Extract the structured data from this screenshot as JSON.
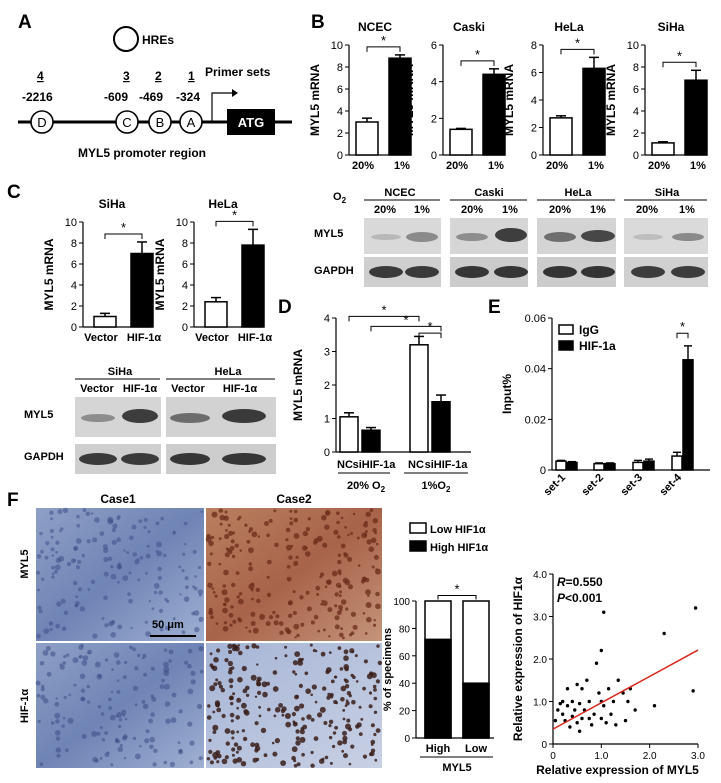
{
  "panel_labels": {
    "A": "A",
    "B": "B",
    "C": "C",
    "D": "D",
    "E": "E",
    "F": "F"
  },
  "panelA": {
    "hre_label": "HREs",
    "primer_label": "Primer sets",
    "set_numbers": [
      "4",
      "3",
      "2",
      "1"
    ],
    "positions": [
      "-2216",
      "-609",
      "-469",
      "-324"
    ],
    "sites": [
      "D",
      "C",
      "B",
      "A"
    ],
    "atg": "ATG",
    "caption": "MYL5 promoter region"
  },
  "panelB": {
    "charts": [
      {
        "title": "NCEC",
        "ylabel": "MYL5 mRNA",
        "yticks": [
          "0",
          "2",
          "4",
          "6",
          "8",
          "10"
        ],
        "ymax": 10,
        "categories": [
          "20%",
          "1%"
        ],
        "values": [
          3.0,
          8.8
        ],
        "errors": [
          0.35,
          0.3
        ],
        "sig": "*"
      },
      {
        "title": "Caski",
        "ylabel": "MYL5 mRNA",
        "yticks": [
          "0",
          "2",
          "4",
          "6"
        ],
        "ymax": 6,
        "categories": [
          "20%",
          "1%"
        ],
        "values": [
          1.4,
          4.4
        ],
        "errors": [
          0.05,
          0.3
        ],
        "sig": "*"
      },
      {
        "title": "HeLa",
        "ylabel": "MYL5 mRNA",
        "yticks": [
          "0",
          "2",
          "4",
          "6",
          "8"
        ],
        "ymax": 8,
        "categories": [
          "20%",
          "1%"
        ],
        "values": [
          2.7,
          6.3
        ],
        "errors": [
          0.15,
          0.8
        ],
        "sig": "*"
      },
      {
        "title": "SiHa",
        "ylabel": "MYL5 mRNA",
        "yticks": [
          "0",
          "2",
          "4",
          "6",
          "8",
          "10"
        ],
        "ymax": 10,
        "categories": [
          "20%",
          "1%"
        ],
        "values": [
          1.1,
          6.8
        ],
        "errors": [
          0.1,
          0.9
        ],
        "sig": "*"
      }
    ],
    "blot": {
      "o2_label": "O",
      "o2_sub": "2",
      "cells": [
        "NCEC",
        "Caski",
        "HeLa",
        "SiHa"
      ],
      "lanes": [
        "20%",
        "1%"
      ],
      "rows": [
        "MYL5",
        "GAPDH"
      ]
    }
  },
  "panelC": {
    "charts": [
      {
        "title": "SiHa",
        "ylabel": "MYL5  mRNA",
        "yticks": [
          "0",
          "2",
          "4",
          "6",
          "8",
          "10"
        ],
        "ymax": 10,
        "categories": [
          "Vector",
          "HIF-1α"
        ],
        "values": [
          1.0,
          7.0
        ],
        "errors": [
          0.3,
          1.1
        ],
        "sig": "*"
      },
      {
        "title": "HeLa",
        "ylabel": "MYL5  mRNA",
        "yticks": [
          "0",
          "2",
          "4",
          "6",
          "8",
          "10"
        ],
        "ymax": 10,
        "categories": [
          "Vector",
          "HIF-1α"
        ],
        "values": [
          2.4,
          7.8
        ],
        "errors": [
          0.4,
          1.5
        ],
        "sig": "*"
      }
    ],
    "blot": {
      "cells": [
        "SiHa",
        "HeLa"
      ],
      "lanes": [
        "Vector",
        "HIF-1α"
      ],
      "rows": [
        "MYL5",
        "GAPDH"
      ]
    }
  },
  "panelD": {
    "chart_data": {
      "type": "bar",
      "ylabel": "MYL5 mRNA",
      "yticks": [
        "0",
        "1",
        "2",
        "3",
        "4"
      ],
      "ylim": [
        0,
        4
      ],
      "categories": [
        "NC",
        "siHIF-1a",
        "NC",
        "siHIF-1a"
      ],
      "values": [
        1.05,
        0.65,
        3.2,
        1.5
      ],
      "errors": [
        0.12,
        0.08,
        0.25,
        0.2
      ],
      "fills": [
        "white",
        "black",
        "white",
        "black"
      ],
      "group_labels": [
        "20%  O",
        "1%O"
      ],
      "group_subs": [
        "2",
        "2"
      ],
      "sig": "*"
    }
  },
  "panelE": {
    "chart_data": {
      "type": "bar",
      "ylabel": "Input%",
      "yticks": [
        "0",
        "0.02",
        "0.04",
        "0.06"
      ],
      "ylim": [
        0,
        0.06
      ],
      "categories": [
        "set-1",
        "set-2",
        "set-3",
        "set-4"
      ],
      "series": [
        {
          "name": "IgG",
          "values": [
            0.0035,
            0.0025,
            0.003,
            0.0055
          ],
          "errors": [
            0.0003,
            0.0003,
            0.0008,
            0.0015
          ]
        },
        {
          "name": "HIF-1a",
          "values": [
            0.003,
            0.0025,
            0.0035,
            0.0435
          ],
          "errors": [
            0.0003,
            0.0003,
            0.0008,
            0.0055
          ]
        }
      ],
      "sig": "*"
    }
  },
  "panelF": {
    "case_labels": [
      "Case1",
      "Case2"
    ],
    "row_labels": [
      "MYL5",
      "HIF-1α"
    ],
    "scale_bar": "50 μm",
    "stacked": {
      "legend": [
        "Low HIF1α",
        "High HIF1α"
      ],
      "ylabel": "% of specimens",
      "yticks": [
        "0",
        "20",
        "40",
        "60",
        "80",
        "100"
      ],
      "categories": [
        "High",
        "Low"
      ],
      "high_values": [
        72,
        40
      ],
      "xgroup": "MYL5",
      "sig": "*"
    },
    "scatter": {
      "r_label": "R",
      "r_val": "=0.550",
      "p_label": "P",
      "p_val": "<0.001",
      "xlabel": "Relative expression of MYL5",
      "ylabel": "Relative expression of HIF1α",
      "xticks": [
        "0",
        "1.0",
        "2.0",
        "3.0"
      ],
      "yticks": [
        "0",
        "1.0",
        "2.0",
        "3.0",
        "4.0"
      ],
      "xlim": [
        0,
        3
      ],
      "ylim": [
        0,
        4
      ],
      "fit": {
        "intercept": 0.35,
        "slope": 0.62
      },
      "points": [
        [
          0.05,
          0.55
        ],
        [
          0.1,
          0.8
        ],
        [
          0.15,
          0.95
        ],
        [
          0.2,
          0.7
        ],
        [
          0.2,
          1.0
        ],
        [
          0.25,
          0.55
        ],
        [
          0.3,
          0.9
        ],
        [
          0.3,
          1.3
        ],
        [
          0.35,
          0.4
        ],
        [
          0.4,
          0.65
        ],
        [
          0.4,
          1.0
        ],
        [
          0.45,
          0.8
        ],
        [
          0.5,
          0.5
        ],
        [
          0.5,
          1.4
        ],
        [
          0.55,
          0.95
        ],
        [
          0.6,
          0.6
        ],
        [
          0.6,
          1.3
        ],
        [
          0.65,
          0.8
        ],
        [
          0.7,
          1.5
        ],
        [
          0.75,
          1.0
        ],
        [
          0.8,
          0.45
        ],
        [
          0.85,
          0.7
        ],
        [
          0.9,
          1.9
        ],
        [
          0.95,
          1.2
        ],
        [
          1.0,
          0.6
        ],
        [
          1.0,
          1.0
        ],
        [
          1.05,
          0.9
        ],
        [
          1.1,
          0.5
        ],
        [
          1.15,
          1.3
        ],
        [
          1.2,
          0.7
        ],
        [
          1.25,
          1.0
        ],
        [
          1.3,
          0.45
        ],
        [
          1.35,
          1.5
        ],
        [
          1.45,
          1.2
        ],
        [
          1.5,
          0.55
        ],
        [
          1.55,
          1.0
        ],
        [
          1.6,
          1.3
        ],
        [
          1.7,
          0.8
        ],
        [
          2.1,
          0.9
        ],
        [
          2.3,
          2.6
        ],
        [
          2.9,
          1.25
        ],
        [
          2.95,
          3.2
        ],
        [
          1.05,
          3.1
        ],
        [
          1.0,
          2.2
        ],
        [
          0.75,
          0.6
        ],
        [
          0.55,
          0.3
        ]
      ]
    }
  }
}
